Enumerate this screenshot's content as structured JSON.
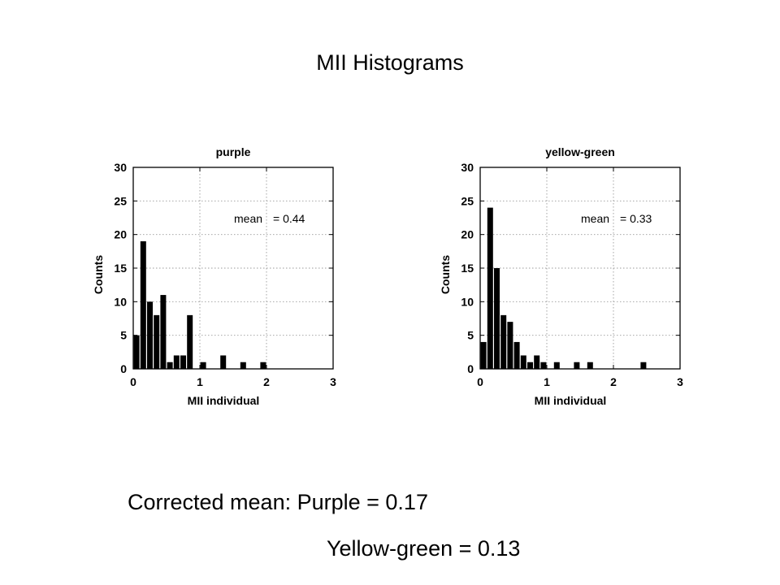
{
  "title": "MII Histograms",
  "notes": {
    "line1": "Corrected mean: Purple = 0.17",
    "line2": "Yellow-green  = 0.13"
  },
  "chart_data": [
    {
      "type": "bar",
      "title": "purple",
      "xlabel": "MII individual",
      "ylabel": "Counts",
      "xlim": [
        0,
        3
      ],
      "ylim": [
        0,
        30
      ],
      "xticks": [
        0,
        1,
        2,
        3
      ],
      "yticks": [
        0,
        5,
        10,
        15,
        20,
        25,
        30
      ],
      "grid": true,
      "bin_width": 0.1,
      "bin_start": 0,
      "values": [
        5,
        19,
        10,
        8,
        11,
        1,
        2,
        2,
        8,
        0,
        1,
        0,
        0,
        2,
        0,
        0,
        1,
        0,
        0,
        1,
        0,
        0,
        0,
        0,
        0,
        0,
        0,
        0,
        0,
        0
      ],
      "annotation": {
        "label": "mean",
        "value": "= 0.44"
      }
    },
    {
      "type": "bar",
      "title": "yellow-green",
      "xlabel": "MII individual",
      "ylabel": "Counts",
      "xlim": [
        0,
        3
      ],
      "ylim": [
        0,
        30
      ],
      "xticks": [
        0,
        1,
        2,
        3
      ],
      "yticks": [
        0,
        5,
        10,
        15,
        20,
        25,
        30
      ],
      "grid": true,
      "bin_width": 0.1,
      "bin_start": 0,
      "values": [
        4,
        24,
        15,
        8,
        7,
        4,
        2,
        1,
        2,
        1,
        0,
        1,
        0,
        0,
        1,
        0,
        1,
        0,
        0,
        0,
        0,
        0,
        0,
        0,
        1,
        0,
        0,
        0,
        0,
        0
      ],
      "annotation": {
        "label": "mean",
        "value": "= 0.33"
      }
    }
  ]
}
